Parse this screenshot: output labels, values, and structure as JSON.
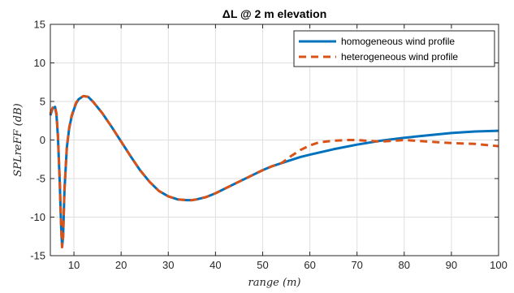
{
  "chart_data": {
    "type": "line",
    "title": "ΔL @ 2 m elevation",
    "xlabel": "range  (m)",
    "ylabel": "SPLreFF  (dB)",
    "xlim": [
      5,
      100
    ],
    "ylim": [
      -15,
      15
    ],
    "xticks": [
      10,
      20,
      30,
      40,
      50,
      60,
      70,
      80,
      90,
      100
    ],
    "yticks": [
      -15,
      -10,
      -5,
      0,
      5,
      10,
      15
    ],
    "grid": true,
    "legend": {
      "position": "top-right"
    },
    "series": [
      {
        "name": "homogeneous wind profile",
        "color": "#0072BD",
        "style": "solid",
        "x": [
          5,
          5.5,
          6,
          6.3,
          6.6,
          7,
          7.3,
          7.5,
          7.7,
          8,
          8.5,
          9,
          9.5,
          10,
          10.5,
          11,
          12,
          13,
          14,
          16,
          18,
          20,
          22,
          24,
          26,
          28,
          30,
          32,
          34,
          35,
          36,
          38,
          40,
          42,
          45,
          48,
          50,
          52,
          55,
          58,
          60,
          65,
          70,
          75,
          80,
          85,
          90,
          95,
          100
        ],
        "y": [
          3.2,
          4.1,
          4.3,
          3.2,
          0.5,
          -5.5,
          -11.5,
          -13.8,
          -12.5,
          -6.5,
          -1.0,
          1.5,
          3.0,
          4.0,
          4.8,
          5.3,
          5.7,
          5.6,
          5.0,
          3.5,
          1.7,
          -0.2,
          -2.1,
          -3.9,
          -5.4,
          -6.6,
          -7.3,
          -7.7,
          -7.8,
          -7.8,
          -7.7,
          -7.4,
          -6.9,
          -6.3,
          -5.4,
          -4.5,
          -3.9,
          -3.4,
          -2.8,
          -2.2,
          -1.9,
          -1.2,
          -0.6,
          -0.1,
          0.3,
          0.6,
          0.9,
          1.1,
          1.2
        ]
      },
      {
        "name": "heterogeneous wind profile",
        "color": "#D95319",
        "style": "dashed",
        "x": [
          5,
          5.5,
          6,
          6.3,
          6.6,
          7,
          7.3,
          7.5,
          7.7,
          8,
          8.5,
          9,
          9.5,
          10,
          10.5,
          11,
          12,
          13,
          14,
          16,
          18,
          20,
          22,
          24,
          26,
          28,
          30,
          32,
          34,
          35,
          36,
          38,
          40,
          42,
          45,
          48,
          50,
          52,
          54,
          56,
          58,
          60,
          62,
          65,
          68,
          70,
          72,
          75,
          78,
          80,
          85,
          90,
          95,
          100
        ],
        "y": [
          3.4,
          4.2,
          4.4,
          3.4,
          0.7,
          -5.3,
          -11.6,
          -13.9,
          -12.6,
          -6.4,
          -0.9,
          1.6,
          3.1,
          4.1,
          4.9,
          5.3,
          5.7,
          5.6,
          5.0,
          3.5,
          1.7,
          -0.2,
          -2.1,
          -3.9,
          -5.4,
          -6.6,
          -7.3,
          -7.7,
          -7.8,
          -7.8,
          -7.7,
          -7.4,
          -6.9,
          -6.3,
          -5.4,
          -4.5,
          -3.9,
          -3.4,
          -3.0,
          -2.1,
          -1.3,
          -0.7,
          -0.3,
          -0.1,
          0.0,
          0.0,
          -0.1,
          -0.2,
          -0.1,
          0.0,
          -0.2,
          -0.4,
          -0.5,
          -0.8
        ]
      }
    ]
  }
}
